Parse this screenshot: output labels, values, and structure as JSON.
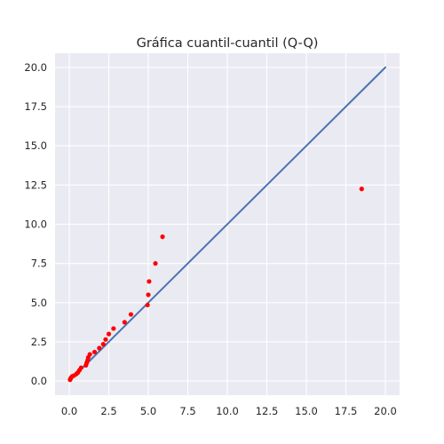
{
  "chart_data": {
    "type": "scatter",
    "title": "Gráfica cuantil-cuantil (Q-Q)",
    "xlabel": "",
    "ylabel": "",
    "xlim": [
      -0.9,
      20.9
    ],
    "ylim": [
      -0.9,
      20.9
    ],
    "x_ticks": [
      0.0,
      2.5,
      5.0,
      7.5,
      10.0,
      12.5,
      15.0,
      17.5,
      20.0
    ],
    "x_tick_labels": [
      "0.0",
      "2.5",
      "5.0",
      "7.5",
      "10.0",
      "12.5",
      "15.0",
      "17.5",
      "20.0"
    ],
    "y_ticks": [
      0.0,
      2.5,
      5.0,
      7.5,
      10.0,
      12.5,
      15.0,
      17.5,
      20.0
    ],
    "y_tick_labels": [
      "0.0",
      "2.5",
      "5.0",
      "7.5",
      "10.0",
      "12.5",
      "15.0",
      "17.5",
      "20.0"
    ],
    "grid": true,
    "background": "#eaeaf2",
    "grid_color": "#ffffff",
    "reference_line": {
      "from": [
        0,
        0
      ],
      "to": [
        20,
        20
      ],
      "color": "#4c72b0"
    },
    "series": [
      {
        "marker_color": "#ff0000",
        "points": [
          [
            0.05,
            0.08
          ],
          [
            0.08,
            0.15
          ],
          [
            0.12,
            0.22
          ],
          [
            0.18,
            0.3
          ],
          [
            0.3,
            0.35
          ],
          [
            0.45,
            0.45
          ],
          [
            0.55,
            0.55
          ],
          [
            0.65,
            0.7
          ],
          [
            0.75,
            0.85
          ],
          [
            1.05,
            1.0
          ],
          [
            1.1,
            1.15
          ],
          [
            1.15,
            1.3
          ],
          [
            1.2,
            1.5
          ],
          [
            1.3,
            1.7
          ],
          [
            1.6,
            1.85
          ],
          [
            1.9,
            2.1
          ],
          [
            2.15,
            2.35
          ],
          [
            2.3,
            2.65
          ],
          [
            2.5,
            3.0
          ],
          [
            2.8,
            3.35
          ],
          [
            3.5,
            3.75
          ],
          [
            3.9,
            4.25
          ],
          [
            4.95,
            4.85
          ],
          [
            5.0,
            5.5
          ],
          [
            5.05,
            6.35
          ],
          [
            5.45,
            7.5
          ],
          [
            5.9,
            9.2
          ],
          [
            18.5,
            12.25
          ]
        ]
      }
    ]
  }
}
